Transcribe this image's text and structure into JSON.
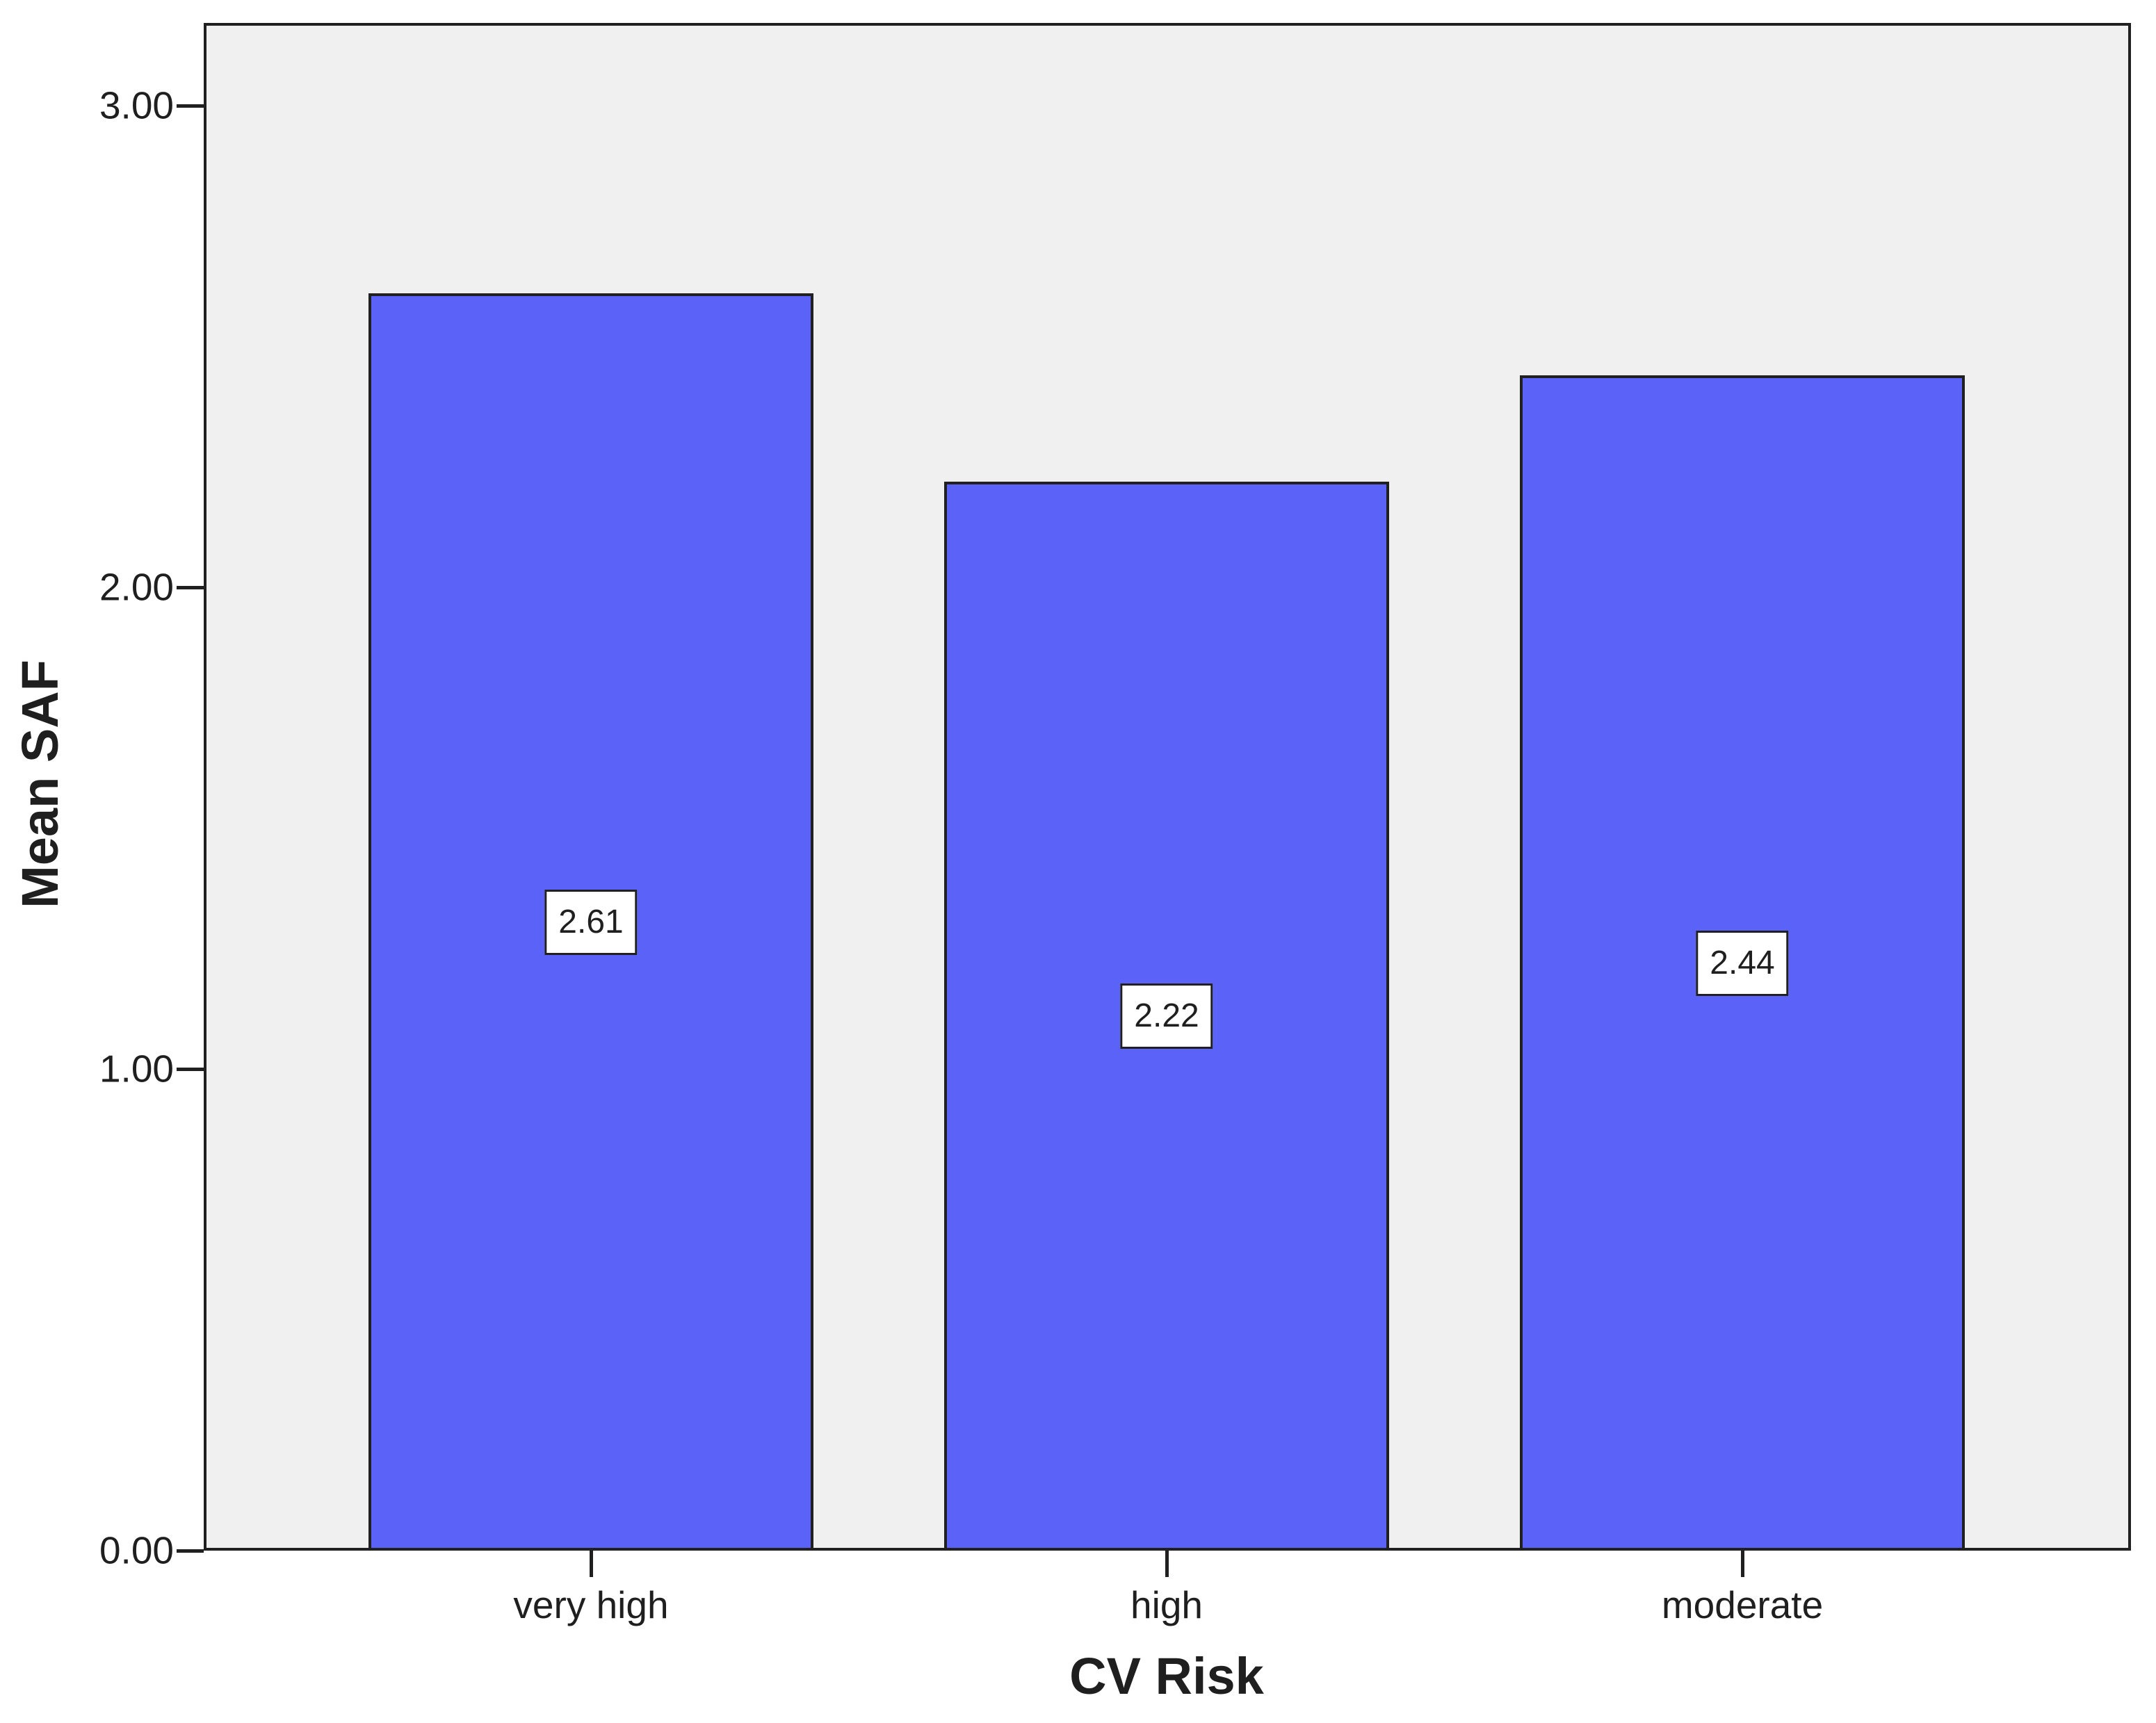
{
  "chart_data": {
    "type": "bar",
    "xlabel": "CV Risk",
    "ylabel": "Mean SAF",
    "categories": [
      "very high",
      "high",
      "moderate"
    ],
    "values": [
      2.61,
      2.22,
      2.44
    ],
    "value_labels": [
      "2.61",
      "2.22",
      "2.44"
    ],
    "yticks": [
      {
        "value": 0,
        "label": "0.00"
      },
      {
        "value": 1,
        "label": "1.00"
      },
      {
        "value": 2,
        "label": "2.00"
      },
      {
        "value": 3,
        "label": "3.00"
      }
    ],
    "ylim": [
      0,
      3.17
    ],
    "grid": false,
    "legend": false,
    "value_labels_position": "middle-of-bar",
    "colors": {
      "bar_fill": "#5a62f8",
      "bar_border": "#202020",
      "plot_background": "#f0f0f0",
      "frame": "#202020",
      "page_background": "#ffffff",
      "text": "#1f1f1f",
      "value_box_background": "#ffffff"
    }
  }
}
